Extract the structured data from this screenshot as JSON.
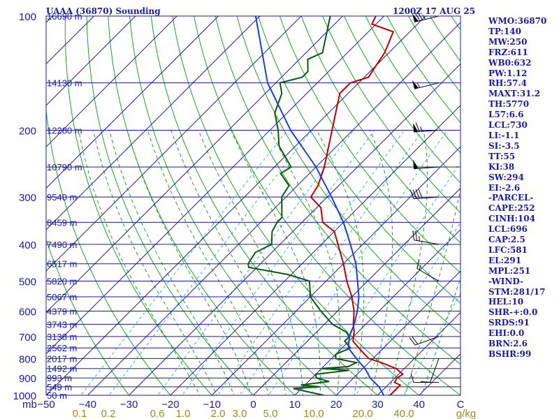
{
  "header": {
    "station": "UAAA (36870) Sounding",
    "time": "1200Z 17 AUG 25"
  },
  "indices": [
    "WMO:36870",
    "TP:140",
    "MW:250",
    "FRZ:611",
    "WB0:632",
    "PW:1.12",
    "RH:57.4",
    "MAXT:31.2",
    "TH:5770",
    "L57:6.6",
    "LCL:730",
    "LI:-1.1",
    "SI:-3.5",
    "TT:55",
    "KI:38",
    "SW:294",
    "EI:-2.6",
    "-PARCEL-",
    "CAPE:252",
    "CINH:104",
    "LCL:696",
    "CAP:2.5",
    "LFC:581",
    "EL:291",
    "MPL:251",
    "-WIND-",
    "STM:281/17",
    "HEL:10",
    "SHR-+:0.0",
    "SRDS:91",
    "EHI:0.0",
    "BRN:2.6",
    "BSHR:99"
  ],
  "colors": {
    "isobar": "#1a1aa6",
    "isotherm": "#1a1aa6",
    "dry_adiabat": "#23a023",
    "moist_adiabat": "#23a023",
    "mixing_ratio": "#3bb5c9",
    "temperature": "#c00000",
    "dewpoint": "#0b5a12",
    "parcel": "#1a3fd6",
    "text": "#1a1aa6",
    "mixing_label": "#a08a1a"
  },
  "chart_data": {
    "type": "line",
    "chart_kind": "skew-T log-P sounding",
    "y_scale": "log",
    "y_axis_unit": "mb",
    "ylim": [
      1000,
      100
    ],
    "xlim": [
      -50,
      50
    ],
    "pressure_ticks": [
      100,
      200,
      300,
      400,
      500,
      600,
      700,
      800,
      900,
      1000
    ],
    "height_ticks": [
      {
        "p": 100,
        "label": "16690 m"
      },
      {
        "p": 150,
        "label": "14130 m"
      },
      {
        "p": 200,
        "label": "12280 m"
      },
      {
        "p": 250,
        "label": "10790 m"
      },
      {
        "p": 300,
        "label": "9540 m"
      },
      {
        "p": 350,
        "label": "8459 m"
      },
      {
        "p": 400,
        "label": "7490 m"
      },
      {
        "p": 450,
        "label": "6517 m"
      },
      {
        "p": 500,
        "label": "5820 m"
      },
      {
        "p": 550,
        "label": "5067 m"
      },
      {
        "p": 600,
        "label": "4379 m"
      },
      {
        "p": 650,
        "label": "3743 m"
      },
      {
        "p": 700,
        "label": "3138 m"
      },
      {
        "p": 750,
        "label": "2562 m"
      },
      {
        "p": 800,
        "label": "2017 m"
      },
      {
        "p": 850,
        "label": "1492 m"
      },
      {
        "p": 900,
        "label": "993 m"
      },
      {
        "p": 950,
        "label": "549 m"
      },
      {
        "p": 1000,
        "label": "50 m"
      }
    ],
    "x_ticks": [
      -50,
      -40,
      -30,
      -20,
      -10,
      0,
      10,
      20,
      30,
      40,
      50
    ],
    "x_tick_labels": [
      "−50",
      "−40",
      "−30",
      "−20",
      "−10",
      "0",
      "10",
      "20",
      "30",
      "40",
      "C"
    ],
    "axis_corner_label": "mb",
    "mixing_ratio_labels": [
      "0.1",
      "0.2",
      "0.6",
      "1.0",
      "2.0",
      "3.0",
      "5.0",
      "10.0",
      "20.0",
      "40.0"
    ],
    "mixing_ratio_unit": "g/kg",
    "series": [
      {
        "key": "temperature",
        "points": [
          [
            1000,
            33
          ],
          [
            940,
            33
          ],
          [
            925,
            31
          ],
          [
            900,
            30.5
          ],
          [
            880,
            31
          ],
          [
            850,
            28
          ],
          [
            820,
            23
          ],
          [
            800,
            19
          ],
          [
            760,
            15
          ],
          [
            720,
            11
          ],
          [
            700,
            10
          ],
          [
            680,
            9
          ],
          [
            650,
            7
          ],
          [
            600,
            4
          ],
          [
            550,
            0
          ],
          [
            500,
            -5
          ],
          [
            450,
            -10
          ],
          [
            400,
            -16
          ],
          [
            370,
            -20
          ],
          [
            350,
            -25
          ],
          [
            320,
            -29
          ],
          [
            300,
            -34
          ],
          [
            280,
            -35
          ],
          [
            250,
            -38
          ],
          [
            200,
            -45
          ],
          [
            160,
            -52
          ],
          [
            150,
            -52
          ],
          [
            145,
            -49
          ],
          [
            135,
            -50
          ],
          [
            125,
            -51
          ],
          [
            110,
            -54
          ],
          [
            105,
            -61
          ],
          [
            100,
            -62
          ]
        ]
      },
      {
        "key": "dewpoint",
        "points": [
          [
            1000,
            17
          ],
          [
            960,
            8
          ],
          [
            950,
            14
          ],
          [
            940,
            9
          ],
          [
            920,
            15
          ],
          [
            900,
            11
          ],
          [
            880,
            10
          ],
          [
            860,
            17
          ],
          [
            850,
            10
          ],
          [
            840,
            16
          ],
          [
            820,
            17
          ],
          [
            800,
            11
          ],
          [
            780,
            10
          ],
          [
            750,
            12
          ],
          [
            720,
            9
          ],
          [
            700,
            9
          ],
          [
            680,
            7
          ],
          [
            650,
            2
          ],
          [
            600,
            -4
          ],
          [
            550,
            -10
          ],
          [
            500,
            -14
          ],
          [
            480,
            -21
          ],
          [
            460,
            -32
          ],
          [
            450,
            -33
          ],
          [
            420,
            -34
          ],
          [
            400,
            -32
          ],
          [
            370,
            -35
          ],
          [
            350,
            -36
          ],
          [
            340,
            -36
          ],
          [
            300,
            -41
          ],
          [
            280,
            -42
          ],
          [
            260,
            -47
          ],
          [
            250,
            -46
          ],
          [
            220,
            -54
          ],
          [
            200,
            -58
          ],
          [
            180,
            -63
          ],
          [
            160,
            -66
          ],
          [
            150,
            -69
          ],
          [
            145,
            -65
          ],
          [
            140,
            -65
          ],
          [
            130,
            -68
          ],
          [
            125,
            -66
          ],
          [
            110,
            -70
          ],
          [
            100,
            -73
          ]
        ]
      },
      {
        "key": "parcel",
        "points": [
          [
            1000,
            31.5
          ],
          [
            950,
            28.3
          ],
          [
            900,
            24
          ],
          [
            850,
            20.5
          ],
          [
            800,
            16
          ],
          [
            750,
            11.5
          ],
          [
            700,
            9
          ],
          [
            650,
            7.2
          ],
          [
            600,
            4.8
          ],
          [
            550,
            1.7
          ],
          [
            500,
            -2.4
          ],
          [
            450,
            -7
          ],
          [
            400,
            -13
          ],
          [
            350,
            -20
          ],
          [
            300,
            -29
          ],
          [
            250,
            -40
          ],
          [
            200,
            -55
          ],
          [
            150,
            -72
          ],
          [
            100,
            -91
          ]
        ]
      }
    ],
    "wind_barbs": [
      {
        "p": 100,
        "direction": 256,
        "speed": 75
      },
      {
        "p": 150,
        "direction": 256,
        "speed": 55
      },
      {
        "p": 200,
        "direction": 266,
        "speed": 65
      },
      {
        "p": 250,
        "direction": 266,
        "speed": 50
      },
      {
        "p": 300,
        "direction": 266,
        "speed": 40
      },
      {
        "p": 400,
        "direction": 280,
        "speed": 25
      },
      {
        "p": 500,
        "direction": 300,
        "speed": 15
      },
      {
        "p": 700,
        "direction": 250,
        "speed": 20
      },
      {
        "p": 800,
        "direction": 200,
        "speed": 10
      },
      {
        "p": 925,
        "direction": 270,
        "speed": 10
      }
    ]
  }
}
